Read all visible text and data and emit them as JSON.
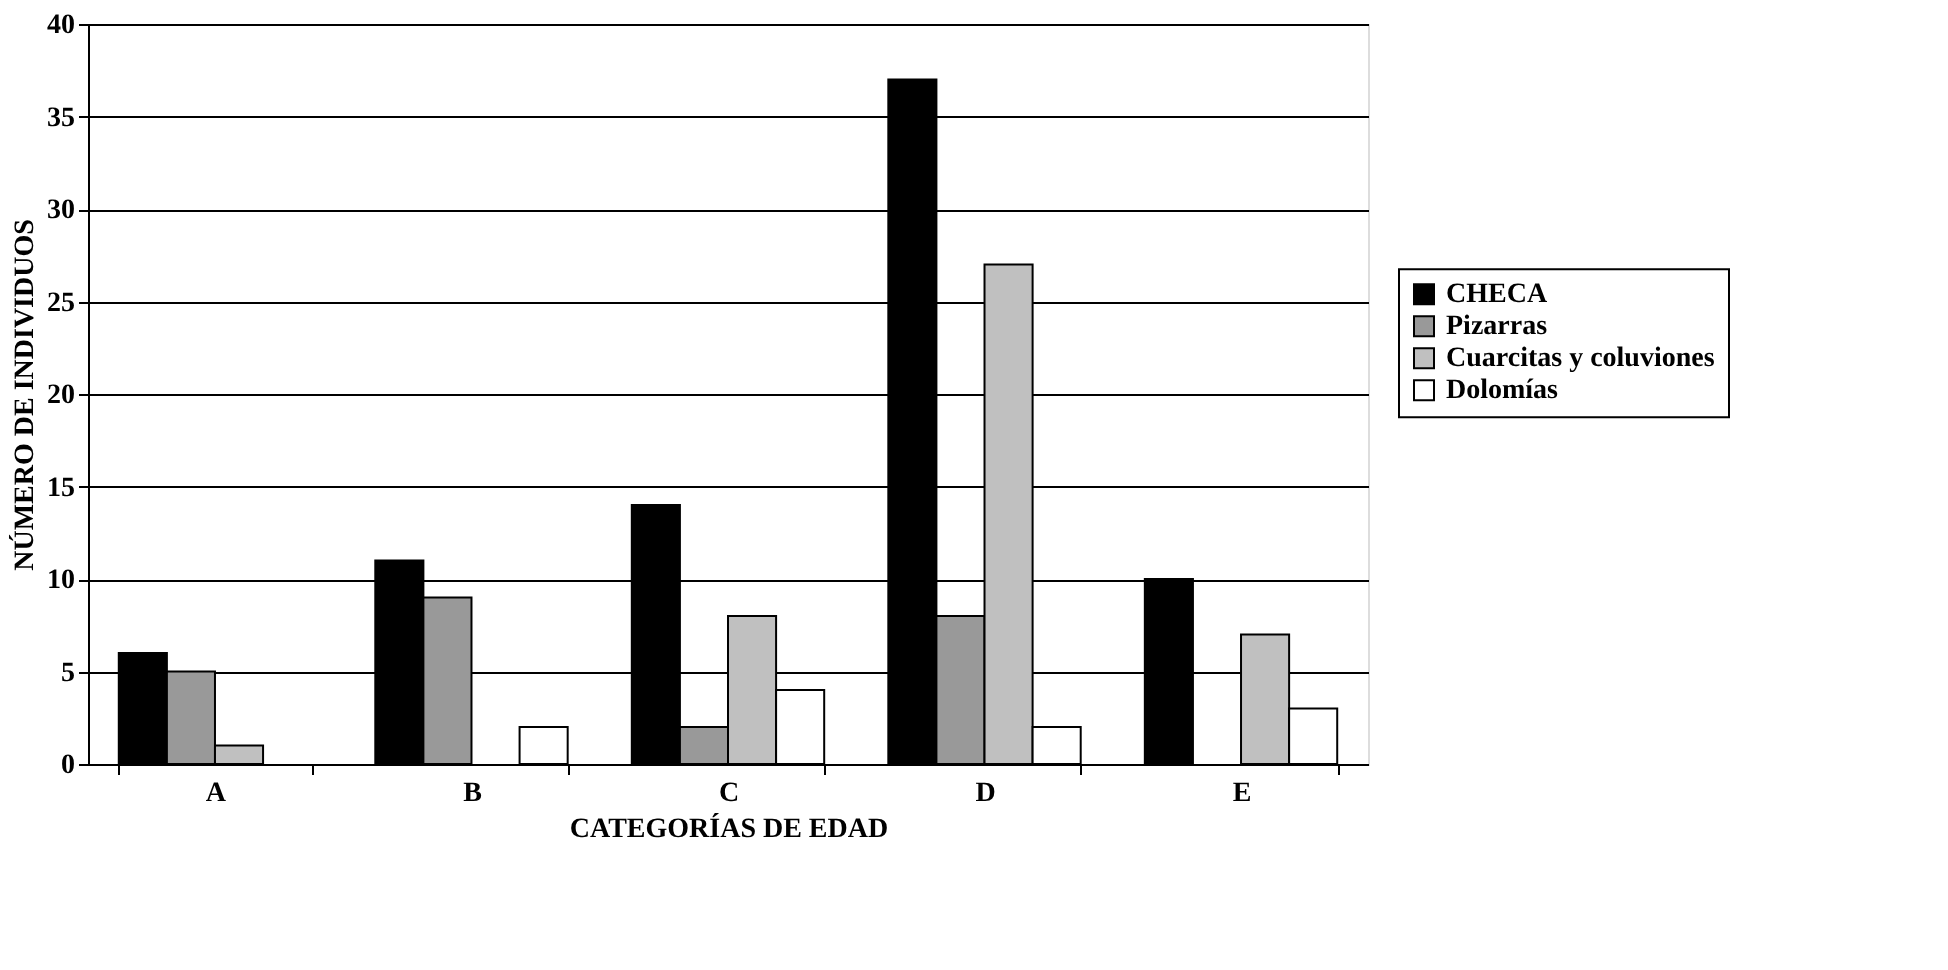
{
  "chart_data": {
    "type": "bar",
    "xlabel": "CATEGORÍAS DE EDAD",
    "ylabel": "NÚMERO DE INDIVIDUOS",
    "categories": [
      "A",
      "B",
      "C",
      "D",
      "E"
    ],
    "series": [
      {
        "name": "CHECA",
        "color": "#000000",
        "values": [
          6,
          11,
          14,
          37,
          10
        ]
      },
      {
        "name": "Pizarras",
        "color": "#999999",
        "values": [
          5,
          9,
          2,
          8,
          0
        ]
      },
      {
        "name": "Cuarcitas y coluviones",
        "color": "#c0c0c0",
        "values": [
          1,
          0,
          8,
          27,
          7
        ]
      },
      {
        "name": "Dolomías",
        "color": "#ffffff",
        "values": [
          0,
          2,
          4,
          2,
          3
        ]
      }
    ],
    "ylim": [
      0,
      40
    ],
    "yticks": [
      0,
      5,
      10,
      15,
      20,
      25,
      30,
      35,
      40
    ],
    "grid": "y",
    "legend": "right"
  }
}
